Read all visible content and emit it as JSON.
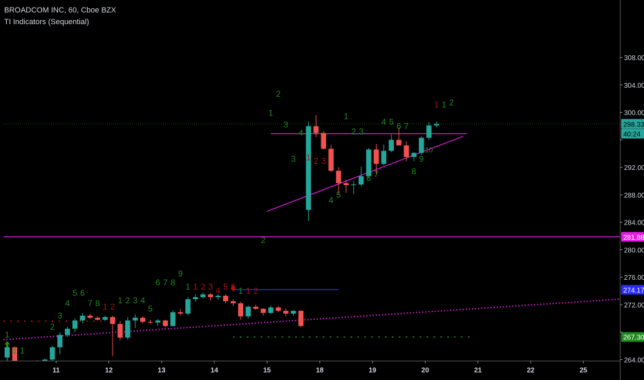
{
  "header": {
    "symbol_title": "BROADCOM INC, 60, Cboe BZX",
    "indicator": "TI Indicators (Sequential)"
  },
  "colors": {
    "background": "#000000",
    "up_candle": "#26a69a",
    "down_candle": "#ef5350",
    "count_green": "#1e8c1e",
    "count_red": "#b01010",
    "magenta": "#e020e0",
    "blue_level": "#2a2aff",
    "axis_text": "#d1d4dc"
  },
  "chart_data": {
    "type": "candlestick",
    "y_ticks": [
      264,
      268,
      272,
      276,
      280,
      284,
      288,
      292,
      296,
      300,
      304,
      308
    ],
    "y_tick_labels": [
      "264.00",
      "",
      "272.00",
      "276.00",
      "280.00",
      "284.00",
      "288.00",
      "292.00",
      "",
      "300.00",
      "304.00",
      "308.00"
    ],
    "x_labels": [
      "11",
      "12",
      "13",
      "14",
      "15",
      "18",
      "19",
      "20",
      "21",
      "22",
      "25"
    ],
    "x_label_index": [
      7,
      14,
      21,
      28,
      35,
      42,
      49,
      56,
      63,
      70,
      77
    ],
    "price_labels": [
      {
        "value": 298.33,
        "text": "298.33",
        "bg": "#26a69a",
        "fg": "#000000"
      },
      {
        "value": 296.9,
        "text": "40:24",
        "bg": "#26a69a",
        "fg": "#000000"
      },
      {
        "value": 281.88,
        "text": "281.88",
        "bg": "#e020e0",
        "fg": "#ffffff"
      },
      {
        "value": 274.17,
        "text": "274.17",
        "bg": "#2a2aff",
        "fg": "#ffffff"
      },
      {
        "value": 267.3,
        "text": "267.30",
        "bg": "#1e8c1e",
        "fg": "#ffffff"
      }
    ],
    "candles": [
      [
        264.3,
        266.0,
        263.4,
        265.8
      ],
      [
        265.8,
        265.9,
        263.2,
        263.5
      ],
      [
        263.5,
        263.6,
        263.0,
        263.3
      ],
      [
        263.3,
        263.8,
        263.1,
        263.5
      ],
      [
        263.5,
        263.9,
        263.2,
        263.7
      ],
      [
        263.7,
        264.2,
        263.4,
        264.0
      ],
      [
        264.0,
        266.0,
        263.8,
        265.8
      ],
      [
        265.8,
        268.0,
        264.8,
        267.6
      ],
      [
        267.6,
        268.8,
        267.3,
        268.5
      ],
      [
        268.5,
        270.0,
        268.0,
        269.7
      ],
      [
        269.7,
        270.8,
        269.3,
        270.4
      ],
      [
        270.4,
        270.7,
        269.9,
        270.1
      ],
      [
        270.1,
        270.3,
        269.7,
        269.8
      ],
      [
        269.8,
        270.4,
        269.6,
        270.2
      ],
      [
        270.2,
        270.4,
        264.5,
        269.2
      ],
      [
        269.2,
        269.6,
        266.8,
        267.2
      ],
      [
        267.2,
        270.2,
        266.9,
        269.7
      ],
      [
        269.7,
        270.6,
        268.6,
        270.1
      ],
      [
        270.1,
        270.3,
        269.3,
        269.5
      ],
      [
        269.5,
        269.8,
        269.2,
        269.4
      ],
      [
        269.4,
        269.9,
        268.9,
        269.7
      ],
      [
        269.7,
        269.8,
        268.7,
        268.9
      ],
      [
        268.9,
        271.2,
        268.8,
        270.9
      ],
      [
        270.9,
        271.4,
        270.4,
        270.7
      ],
      [
        270.7,
        273.1,
        270.4,
        272.8
      ],
      [
        272.8,
        273.5,
        272.4,
        273.1
      ],
      [
        273.1,
        273.8,
        272.9,
        273.5
      ],
      [
        273.5,
        273.7,
        272.6,
        273.1
      ],
      [
        273.1,
        273.5,
        272.7,
        273.3
      ],
      [
        273.3,
        273.5,
        272.2,
        272.5
      ],
      [
        272.5,
        272.8,
        271.8,
        272.2
      ],
      [
        272.2,
        272.4,
        269.8,
        270.3
      ],
      [
        270.3,
        271.9,
        270.0,
        271.7
      ],
      [
        271.7,
        272.0,
        271.2,
        271.4
      ],
      [
        271.4,
        271.5,
        270.4,
        270.8
      ],
      [
        270.8,
        271.9,
        270.6,
        271.6
      ],
      [
        271.6,
        271.8,
        270.9,
        271.1
      ],
      [
        271.1,
        271.4,
        270.3,
        270.7
      ],
      [
        270.7,
        271.2,
        270.4,
        271.1
      ],
      [
        271.1,
        271.2,
        268.7,
        268.9
      ],
      [
        285.8,
        298.7,
        284.2,
        298.0
      ],
      [
        298.0,
        299.6,
        296.4,
        297.0
      ],
      [
        297.0,
        297.3,
        294.6,
        294.7
      ],
      [
        294.7,
        295.3,
        291.3,
        291.5
      ],
      [
        291.5,
        292.0,
        288.0,
        289.7
      ],
      [
        289.7,
        290.2,
        288.3,
        289.4
      ],
      [
        289.4,
        290.0,
        288.1,
        289.5
      ],
      [
        289.5,
        292.1,
        289.2,
        290.7
      ],
      [
        290.7,
        294.8,
        290.4,
        294.6
      ],
      [
        294.6,
        295.4,
        290.9,
        292.5
      ],
      [
        292.5,
        295.3,
        292.3,
        294.4
      ],
      [
        294.4,
        296.8,
        294.2,
        296.0
      ],
      [
        296.0,
        297.8,
        295.4,
        295.2
      ],
      [
        295.2,
        295.8,
        292.9,
        293.5
      ],
      [
        293.5,
        294.2,
        292.9,
        294.1
      ],
      [
        294.1,
        296.5,
        293.8,
        296.3
      ],
      [
        296.3,
        298.6,
        296.0,
        298.1
      ],
      [
        298.1,
        298.7,
        297.8,
        298.33
      ]
    ],
    "counts": [
      {
        "i": 0,
        "v": 267.2,
        "t": "1",
        "c": "green"
      },
      {
        "i": 1,
        "v": 264.9,
        "t": "1",
        "c": "green"
      },
      {
        "i": 2,
        "v": 264.9,
        "t": "1",
        "c": "green"
      },
      {
        "i": 6,
        "v": 268.4,
        "t": "2",
        "c": "green"
      },
      {
        "i": 7,
        "v": 270.0,
        "t": "3",
        "c": "green"
      },
      {
        "i": 8,
        "v": 271.8,
        "t": "4",
        "c": "green"
      },
      {
        "i": 9,
        "v": 273.3,
        "t": "5",
        "c": "green"
      },
      {
        "i": 10,
        "v": 273.3,
        "t": "6",
        "c": "green"
      },
      {
        "i": 11,
        "v": 271.8,
        "t": "7",
        "c": "green"
      },
      {
        "i": 12,
        "v": 271.8,
        "t": "8",
        "c": "green"
      },
      {
        "i": 13,
        "v": 271.3,
        "t": "1",
        "c": "red"
      },
      {
        "i": 14,
        "v": 271.3,
        "t": "2",
        "c": "red"
      },
      {
        "i": 15,
        "v": 272.2,
        "t": "1",
        "c": "green"
      },
      {
        "i": 16,
        "v": 272.2,
        "t": "2",
        "c": "green"
      },
      {
        "i": 17,
        "v": 272.2,
        "t": "3",
        "c": "green"
      },
      {
        "i": 18,
        "v": 272.2,
        "t": "4",
        "c": "green"
      },
      {
        "i": 19,
        "v": 271.0,
        "t": "5",
        "c": "green"
      },
      {
        "i": 20,
        "v": 274.8,
        "t": "6",
        "c": "green"
      },
      {
        "i": 21,
        "v": 274.8,
        "t": "7",
        "c": "green"
      },
      {
        "i": 22,
        "v": 274.8,
        "t": "8",
        "c": "green"
      },
      {
        "i": 23,
        "v": 276.1,
        "t": "9",
        "c": "green"
      },
      {
        "i": 24,
        "v": 274.2,
        "t": "1",
        "c": "green"
      },
      {
        "i": 25,
        "v": 274.2,
        "t": "1",
        "c": "red"
      },
      {
        "i": 26,
        "v": 274.2,
        "t": "2",
        "c": "red"
      },
      {
        "i": 27,
        "v": 274.2,
        "t": "3",
        "c": "red"
      },
      {
        "i": 28,
        "v": 273.6,
        "t": "4",
        "c": "red"
      },
      {
        "i": 29,
        "v": 274.2,
        "t": "5",
        "c": "red"
      },
      {
        "i": 30,
        "v": 274.2,
        "t": "6",
        "c": "red"
      },
      {
        "i": 31,
        "v": 273.6,
        "t": "1",
        "c": "green"
      },
      {
        "i": 32,
        "v": 273.6,
        "t": "1",
        "c": "red"
      },
      {
        "i": 33,
        "v": 273.6,
        "t": "2",
        "c": "red"
      },
      {
        "i": 34,
        "v": 281.0,
        "t": "2",
        "c": "green"
      },
      {
        "i": 35,
        "v": 299.5,
        "t": "1",
        "c": "green"
      },
      {
        "i": 36,
        "v": 302.3,
        "t": "2",
        "c": "green"
      },
      {
        "i": 37,
        "v": 297.8,
        "t": "3",
        "c": "green"
      },
      {
        "i": 38,
        "v": 292.8,
        "t": "3",
        "c": "green"
      },
      {
        "i": 39,
        "v": 296.6,
        "t": "4",
        "c": "green"
      },
      {
        "i": 40,
        "v": 293.0,
        "t": "1",
        "c": "red"
      },
      {
        "i": 41,
        "v": 292.5,
        "t": "2",
        "c": "red"
      },
      {
        "i": 42,
        "v": 292.5,
        "t": "3",
        "c": "red"
      },
      {
        "i": 43,
        "v": 286.8,
        "t": "4",
        "c": "green"
      },
      {
        "i": 44,
        "v": 287.6,
        "t": "5",
        "c": "green"
      },
      {
        "i": 45,
        "v": 299.0,
        "t": "1",
        "c": "green"
      },
      {
        "i": 46,
        "v": 296.8,
        "t": "2",
        "c": "green"
      },
      {
        "i": 47,
        "v": 296.8,
        "t": "3",
        "c": "green"
      },
      {
        "i": 48,
        "v": 290.0,
        "t": "6",
        "c": "green"
      },
      {
        "i": 49,
        "v": 290.6,
        "t": "7",
        "c": "green"
      },
      {
        "i": 50,
        "v": 298.2,
        "t": "4",
        "c": "green"
      },
      {
        "i": 51,
        "v": 298.2,
        "t": "5",
        "c": "green"
      },
      {
        "i": 52,
        "v": 297.6,
        "t": "6",
        "c": "green"
      },
      {
        "i": 53,
        "v": 297.6,
        "t": "7",
        "c": "green"
      },
      {
        "i": 54,
        "v": 291.0,
        "t": "8",
        "c": "green"
      },
      {
        "i": 55,
        "v": 292.8,
        "t": "9",
        "c": "green"
      },
      {
        "i": 56,
        "v": 294.2,
        "t": "10",
        "c": "green"
      },
      {
        "i": 57,
        "v": 300.7,
        "t": "1",
        "c": "red"
      },
      {
        "i": 58,
        "v": 300.7,
        "t": "1",
        "c": "green"
      },
      {
        "i": 59,
        "v": 301.0,
        "t": "2",
        "c": "green"
      }
    ],
    "arrows": [
      {
        "i": 0,
        "v": 266.2,
        "dir": "up",
        "color": "green"
      },
      {
        "i": 30,
        "v": 274.4,
        "dir": "down",
        "color": "red"
      }
    ],
    "lines": [
      {
        "name": "support-level",
        "x1": -0.5,
        "y1": 281.88,
        "x2": 120,
        "y2": 281.88,
        "color": "magenta",
        "style": "solid"
      },
      {
        "name": "triangle-top",
        "x1": 35,
        "y1": 296.9,
        "x2": 61,
        "y2": 296.9,
        "color": "magenta",
        "style": "solid"
      },
      {
        "name": "triangle-bottom",
        "x1": 34.5,
        "y1": 285.6,
        "x2": 60.5,
        "y2": 296.5,
        "color": "magenta",
        "style": "solid"
      },
      {
        "name": "rising-dotted-trendline",
        "x1": -0.5,
        "y1": 266.9,
        "x2": 120,
        "y2": 275.6,
        "color": "magenta",
        "style": "dotted"
      },
      {
        "name": "blue-resistance",
        "x1": 30,
        "y1": 274.17,
        "x2": 44,
        "y2": 274.17,
        "color": "blue",
        "style": "solid"
      },
      {
        "name": "green-dotted-level",
        "x1": 30,
        "y1": 267.3,
        "x2": 62,
        "y2": 267.3,
        "color": "green",
        "style": "dots"
      },
      {
        "name": "red-dotted-level",
        "x1": -0.5,
        "y1": 269.6,
        "x2": 13,
        "y2": 269.6,
        "color": "red",
        "style": "dots"
      },
      {
        "name": "price-line-dotted",
        "x1": -0.5,
        "y1": 298.33,
        "x2": 120,
        "y2": 298.33,
        "color": "green",
        "style": "dotted-thin"
      }
    ]
  }
}
